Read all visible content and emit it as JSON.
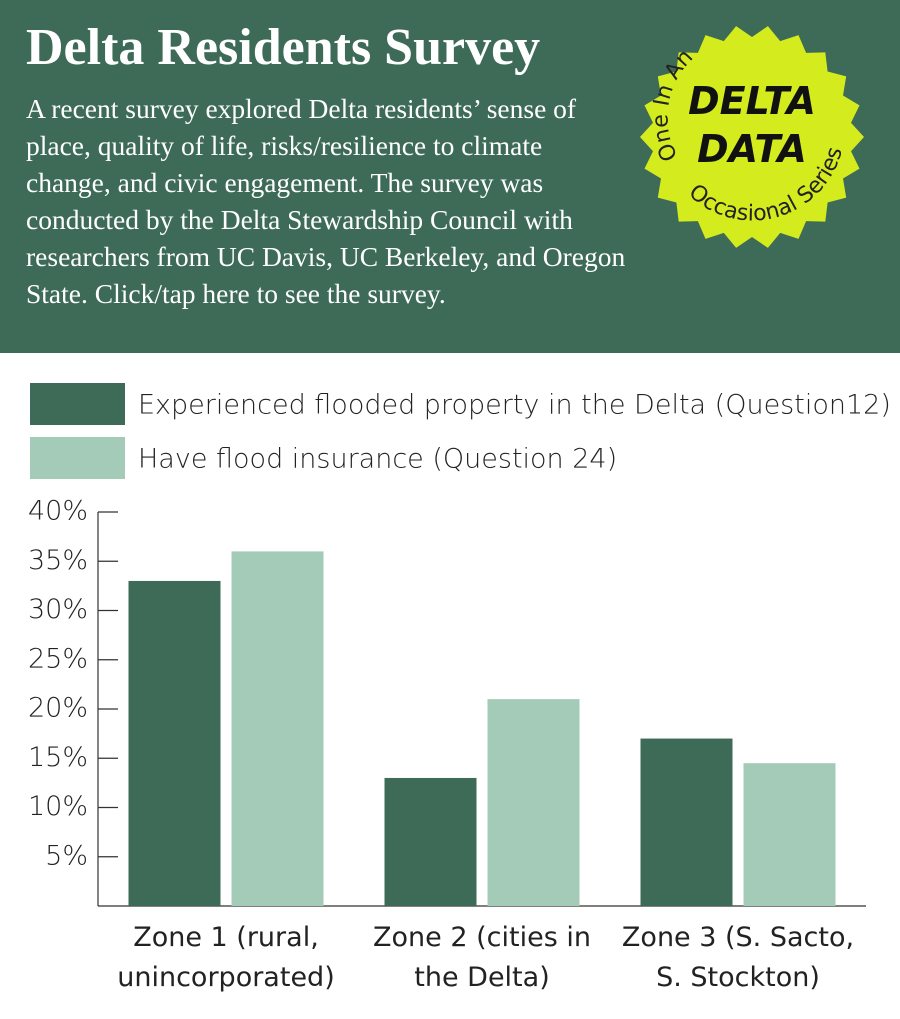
{
  "header": {
    "title": "Delta Residents Survey",
    "description": "A recent survey explored Delta residents’ sense of place, quality of life, risks/resilience to climate change, and civic engagement. The survey was conducted by the Delta Stewardship Council with researchers from UC Davis, UC Berkeley, and Oregon State. Click/tap here to see the survey.",
    "badge": {
      "top": "One In An",
      "line1": "DELTA",
      "line2": "DATA",
      "bottom": "Occasional Series"
    }
  },
  "chart_data": {
    "type": "bar",
    "categories": [
      "Zone 1 (rural, unincorporated)",
      "Zone 2 (cities in the Delta)",
      "Zone 3 (S. Sacto, S. Stockton)"
    ],
    "series": [
      {
        "name": "Experienced flooded property in the Delta (Question12)",
        "color": "#3d6b57",
        "values": [
          33,
          13,
          17
        ]
      },
      {
        "name": "Have flood insurance (Question 24)",
        "color": "#a3cbb8",
        "values": [
          36,
          21,
          14.5
        ]
      }
    ],
    "ylim": [
      0,
      40
    ],
    "yticks": [
      {
        "value": 5,
        "label": "5%"
      },
      {
        "value": 10,
        "label": "10%"
      },
      {
        "value": 15,
        "label": "15%"
      },
      {
        "value": 20,
        "label": "20%"
      },
      {
        "value": 25,
        "label": "25%"
      },
      {
        "value": 30,
        "label": "30%"
      },
      {
        "value": 35,
        "label": "35%"
      },
      {
        "value": 40,
        "label": "40%"
      }
    ]
  }
}
